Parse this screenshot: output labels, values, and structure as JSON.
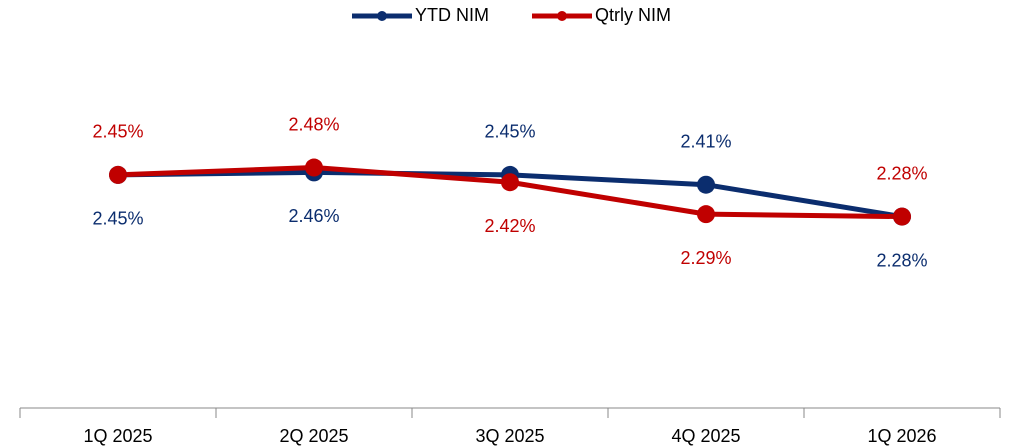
{
  "chart_data": {
    "type": "line",
    "categories": [
      "1Q 2025",
      "2Q 2025",
      "3Q 2025",
      "4Q 2025",
      "1Q 2026"
    ],
    "series": [
      {
        "name": "YTD NIM",
        "color": "#0b2d6e",
        "values": [
          2.45,
          2.46,
          2.45,
          2.41,
          2.28
        ],
        "value_labels": [
          "2.45%",
          "2.46%",
          "2.45%",
          "2.41%",
          "2.28%"
        ]
      },
      {
        "name": "Qtrly NIM",
        "color": "#c00000",
        "values": [
          2.45,
          2.48,
          2.42,
          2.29,
          2.28
        ],
        "value_labels": [
          "2.45%",
          "2.48%",
          "2.42%",
          "2.29%",
          "2.28%"
        ]
      }
    ],
    "ylim": [
      1.5,
      2.8
    ],
    "legend": "top"
  }
}
